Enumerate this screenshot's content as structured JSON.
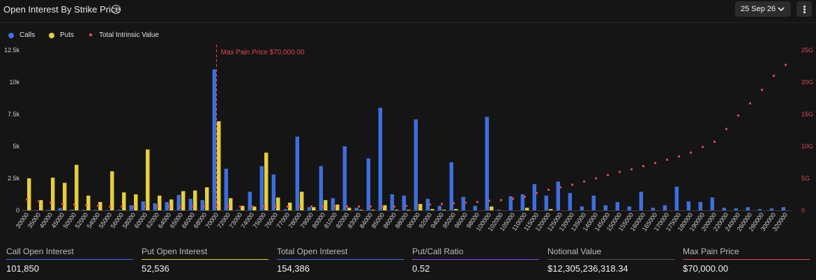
{
  "header": {
    "title": "Open Interest By Strike Price",
    "info_icon": "info-circle-icon",
    "date_select": "25 Sep 26",
    "chevron_icon": "chevron-down-icon",
    "more_icon": "vertical-ellipsis-icon"
  },
  "legend": [
    {
      "label": "Calls",
      "color": "#3d6fe0",
      "shape": "circle"
    },
    {
      "label": "Puts",
      "color": "#e6cf3a",
      "shape": "circle"
    },
    {
      "label": "Total Intrinsic Value",
      "color": "#e0474c",
      "shape": "square"
    }
  ],
  "chart_data": {
    "type": "bar",
    "categories": [
      "30000",
      "35000",
      "40000",
      "45000",
      "50000",
      "52000",
      "54000",
      "55000",
      "56000",
      "58000",
      "60000",
      "62000",
      "64000",
      "65000",
      "66000",
      "68000",
      "70000",
      "72000",
      "73000",
      "74000",
      "75000",
      "76000",
      "77000",
      "78000",
      "79000",
      "80000",
      "81000",
      "82000",
      "83000",
      "84000",
      "85000",
      "86000",
      "88000",
      "90000",
      "92000",
      "94000",
      "95000",
      "96000",
      "98000",
      "100000",
      "102000",
      "105000",
      "110000",
      "115000",
      "120000",
      "125000",
      "130000",
      "135000",
      "140000",
      "145000",
      "150000",
      "155000",
      "160000",
      "165000",
      "170000",
      "175000",
      "180000",
      "190000",
      "200000",
      "220000",
      "240000",
      "260000",
      "280000",
      "300000",
      "320000"
    ],
    "series": [
      {
        "name": "Calls",
        "axis": "left",
        "color": "#3d6fe0",
        "values": [
          20,
          30,
          40,
          180,
          60,
          50,
          40,
          30,
          50,
          400,
          700,
          550,
          650,
          1200,
          900,
          800,
          11000,
          3250,
          40,
          1450,
          3450,
          2800,
          100,
          5750,
          250,
          3450,
          950,
          5000,
          200,
          4050,
          8000,
          1250,
          1150,
          7100,
          900,
          350,
          3750,
          1050,
          350,
          7300,
          50,
          1100,
          1250,
          2050,
          1150,
          2250,
          1350,
          300,
          1150,
          400,
          650,
          300,
          1450,
          200,
          400,
          1850,
          700,
          650,
          1000,
          200,
          150,
          250,
          100,
          150,
          250
        ]
      },
      {
        "name": "Puts",
        "axis": "left",
        "color": "#e6cf3a",
        "values": [
          2500,
          800,
          2550,
          2150,
          3550,
          1150,
          650,
          3050,
          1400,
          1250,
          4750,
          1150,
          850,
          1500,
          1550,
          1800,
          6950,
          950,
          350,
          300,
          4500,
          1000,
          600,
          1450,
          250,
          800,
          450,
          200,
          50,
          50,
          400,
          50,
          50,
          500,
          100,
          50,
          100,
          0,
          0,
          300,
          0,
          0,
          200,
          0,
          100,
          0,
          0,
          0,
          0,
          0,
          0,
          0,
          0,
          0,
          0,
          0,
          0,
          0,
          0,
          0,
          0,
          0,
          0,
          0,
          0
        ]
      },
      {
        "name": "Total Intrinsic Value",
        "axis": "right",
        "type": "scatter",
        "color": "#e0474c",
        "values": [
          1.7,
          1.4,
          1.2,
          1.0,
          0.9,
          0.8,
          0.7,
          0.6,
          0.6,
          0.6,
          0.6,
          0.6,
          0.6,
          0.6,
          0.6,
          0.6,
          0.7,
          0.6,
          0.6,
          0.6,
          0.6,
          0.6,
          0.6,
          0.6,
          0.6,
          0.6,
          0.6,
          0.6,
          0.6,
          0.6,
          0.6,
          0.6,
          0.7,
          0.8,
          0.9,
          1.0,
          1.1,
          1.2,
          1.3,
          1.5,
          1.6,
          1.8,
          2.1,
          2.7,
          3.2,
          3.6,
          4.0,
          4.5,
          5.0,
          5.5,
          6.0,
          6.4,
          6.9,
          7.4,
          7.9,
          8.4,
          9.0,
          9.9,
          10.7,
          12.7,
          14.8,
          16.7,
          18.8,
          21.0,
          22.7
        ]
      }
    ],
    "y_left": {
      "min": 0,
      "max": 12500,
      "ticks": [
        0,
        2500,
        5000,
        7500,
        10000,
        12500
      ],
      "tick_labels": [
        "0",
        "2.5k",
        "5k",
        "7.5k",
        "10k",
        "12.5k"
      ]
    },
    "y_right": {
      "min": 0,
      "max": 25,
      "ticks": [
        0,
        5,
        10,
        15,
        20,
        25
      ],
      "tick_labels": [
        "0",
        "5G",
        "10G",
        "15G",
        "20G",
        "25G"
      ],
      "color": "#e0474c"
    },
    "annotation": {
      "category": "70000",
      "label": "Max Pain Price $70,000.00",
      "color": "#e0474c"
    },
    "grid": false,
    "legend_position": "top-left"
  },
  "stats": [
    {
      "label": "Call Open Interest",
      "value": "101,850",
      "color": "#3d6fe0"
    },
    {
      "label": "Put Open Interest",
      "value": "52,536",
      "color": "#e6cf3a"
    },
    {
      "label": "Total Open Interest",
      "value": "154,386",
      "color": "#3d6fe0"
    },
    {
      "label": "Put/Call Ratio",
      "value": "0.52",
      "color": "#8a4fe0"
    },
    {
      "label": "Notional Value",
      "value": "$12,305,236,318.34",
      "color": "#555555"
    },
    {
      "label": "Max Pain Price",
      "value": "$70,000.00",
      "color": "#e0474c"
    }
  ]
}
